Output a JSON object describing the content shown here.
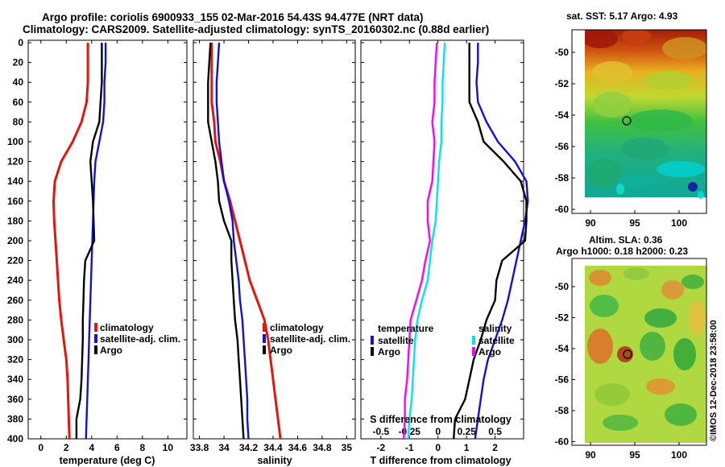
{
  "header": {
    "title_line1": "Argo profile: coriolis 6900933_155 02-Mar-2016 54.43S 94.477E (NRT data)",
    "title_line2": "Climatology: CARS2009. Satellite-adjusted climatology: synTS_20160302.nc (0.88d earlier)"
  },
  "colors": {
    "climatology": "#e8140c",
    "satellite": "#1010e0",
    "argo": "#000000",
    "satellite_s": "#00e5ee",
    "argo_s": "#ff00ff"
  },
  "chart_data": [
    {
      "type": "line",
      "id": "temperature",
      "xlabel": "temperature (deg C)",
      "xlim": [
        -1,
        11.5
      ],
      "ylim": [
        400,
        0
      ],
      "xticks": [
        0,
        2,
        4,
        6,
        8,
        10
      ],
      "xtick_labels": [
        "0",
        "2",
        "4",
        "6",
        "8",
        "10"
      ],
      "legend": [
        "climatology",
        "satellite-adj. clim.",
        "Argo"
      ],
      "depth": [
        0,
        20,
        40,
        60,
        80,
        100,
        120,
        140,
        160,
        180,
        200,
        220,
        240,
        260,
        280,
        300,
        320,
        340,
        360,
        380,
        400
      ],
      "series": [
        {
          "name": "climatology",
          "color_key": "climatology",
          "values": [
            3.7,
            3.7,
            3.7,
            3.6,
            3.2,
            2.5,
            1.6,
            1.1,
            1.0,
            1.05,
            1.15,
            1.25,
            1.35,
            1.45,
            1.6,
            1.8,
            2.0,
            2.1,
            2.15,
            2.2,
            2.25
          ]
        },
        {
          "name": "satellite-adj. clim.",
          "color_key": "satellite",
          "values": [
            5.1,
            5.1,
            5.0,
            5.0,
            4.9,
            4.6,
            4.3,
            4.2,
            4.15,
            4.1,
            4.05,
            4.0,
            3.95,
            3.9,
            3.85,
            3.8,
            3.75,
            3.7,
            3.65,
            3.6,
            3.55
          ]
        },
        {
          "name": "Argo",
          "color_key": "argo",
          "values": [
            4.8,
            4.8,
            4.8,
            4.7,
            4.6,
            4.1,
            3.9,
            4.0,
            4.1,
            4.15,
            4.2,
            3.5,
            3.4,
            3.35,
            3.3,
            3.3,
            3.25,
            3.2,
            3.1,
            2.8,
            2.8
          ]
        }
      ]
    },
    {
      "type": "line",
      "id": "salinity",
      "xlabel": "salinity",
      "xlim": [
        33.75,
        35.07
      ],
      "ylim": [
        400,
        0
      ],
      "xticks": [
        33.8,
        34.0,
        34.2,
        34.4,
        34.6,
        34.8,
        35.0
      ],
      "xtick_labels": [
        "33.8",
        "34",
        "34.2",
        "34.4",
        "34.6",
        "34.8",
        "35"
      ],
      "legend": [
        "climatology",
        "satellite-adj. clim.",
        "Argo"
      ],
      "depth": [
        0,
        20,
        40,
        60,
        80,
        100,
        120,
        140,
        160,
        180,
        200,
        220,
        240,
        260,
        280,
        300,
        320,
        340,
        360,
        380,
        400
      ],
      "series": [
        {
          "name": "climatology",
          "color_key": "climatology",
          "values": [
            33.9,
            33.9,
            33.9,
            33.9,
            33.92,
            33.93,
            33.97,
            34.0,
            34.05,
            34.09,
            34.13,
            34.17,
            34.21,
            34.27,
            34.33,
            34.36,
            34.38,
            34.4,
            34.42,
            34.44,
            34.46
          ]
        },
        {
          "name": "satellite-adj. clim.",
          "color_key": "satellite",
          "values": [
            33.96,
            33.95,
            33.94,
            33.94,
            33.95,
            33.96,
            33.98,
            34.0,
            34.04,
            34.07,
            34.08,
            34.1,
            34.12,
            34.13,
            34.15,
            34.16,
            34.17,
            34.18,
            34.19,
            34.19,
            34.2
          ]
        },
        {
          "name": "Argo",
          "color_key": "argo",
          "values": [
            33.89,
            33.88,
            33.87,
            33.87,
            33.87,
            33.9,
            33.93,
            33.95,
            33.96,
            34.0,
            34.06,
            34.06,
            34.07,
            34.08,
            34.09,
            34.11,
            34.12,
            34.13,
            34.14,
            34.15,
            34.16
          ]
        }
      ]
    },
    {
      "type": "line",
      "id": "difference",
      "xlabel": "T difference from climatology",
      "xlabel_top": "S difference from climatology",
      "xlim": [
        -2.7,
        3.0
      ],
      "xlim_top": [
        -0.675,
        0.75
      ],
      "ylim": [
        400,
        0
      ],
      "xticks": [
        -2,
        -1,
        0,
        1,
        2
      ],
      "xtick_labels": [
        "-2",
        "-1",
        "0",
        "1",
        "2"
      ],
      "xticks_top": [
        -0.5,
        -0.25,
        0,
        0.25,
        0.5
      ],
      "xtick_labels_top": [
        "-0.5",
        "-0.25",
        "0",
        "0.25",
        "0.5"
      ],
      "legend_t_title": "temperature",
      "legend_s_title": "salinity",
      "legend_t": [
        "satellite",
        "Argo"
      ],
      "legend_s": [
        "satellite",
        "Argo"
      ],
      "depth": [
        0,
        20,
        40,
        60,
        80,
        100,
        120,
        140,
        160,
        180,
        200,
        220,
        240,
        260,
        280,
        300,
        320,
        340,
        360,
        380,
        400
      ],
      "series": [
        {
          "name": "temperature satellite",
          "color_key": "satellite",
          "axis": "T",
          "values": [
            1.4,
            1.4,
            1.35,
            1.4,
            1.7,
            2.1,
            2.7,
            3.1,
            3.15,
            3.05,
            2.9,
            2.75,
            2.6,
            2.45,
            2.25,
            2.0,
            1.75,
            1.6,
            1.5,
            1.4,
            1.3
          ]
        },
        {
          "name": "temperature Argo",
          "color_key": "argo",
          "axis": "T",
          "values": [
            1.1,
            1.1,
            1.1,
            1.1,
            1.4,
            1.6,
            2.3,
            2.9,
            3.1,
            3.1,
            3.05,
            2.25,
            2.05,
            2.0,
            1.7,
            1.5,
            1.25,
            1.1,
            0.95,
            0.6,
            0.55
          ]
        },
        {
          "name": "salinity satellite",
          "color_key": "satellite_s",
          "axis": "S",
          "values": [
            0.06,
            0.05,
            0.04,
            0.04,
            0.03,
            0.03,
            0.01,
            0.0,
            -0.01,
            -0.02,
            -0.05,
            -0.07,
            -0.09,
            -0.14,
            -0.18,
            -0.2,
            -0.21,
            -0.22,
            -0.23,
            -0.25,
            -0.26
          ]
        },
        {
          "name": "salinity Argo",
          "color_key": "argo_s",
          "axis": "S",
          "values": [
            -0.01,
            -0.02,
            -0.03,
            -0.03,
            -0.05,
            -0.03,
            -0.04,
            -0.05,
            -0.09,
            -0.09,
            -0.07,
            -0.11,
            -0.14,
            -0.19,
            -0.24,
            -0.25,
            -0.26,
            -0.27,
            -0.29,
            -0.29,
            -0.3
          ]
        }
      ]
    },
    {
      "type": "heatmap",
      "id": "sst_map",
      "title": "sat. SST: 5.17 Argo: 4.93",
      "xticks": [
        90,
        95,
        100
      ],
      "yticks": [
        -50,
        -52,
        -54,
        -56,
        -58,
        -60
      ],
      "marker": [
        94.477,
        -54.43
      ]
    },
    {
      "type": "heatmap",
      "id": "sla_map",
      "title_line1": "Altim. SLA: 0.36",
      "title_line2": "Argo h1000: 0.18 h2000: 0.23",
      "xticks": [
        90,
        95,
        100
      ],
      "yticks": [
        -50,
        -52,
        -54,
        -56,
        -58,
        -60
      ],
      "marker": [
        94.477,
        -54.43
      ]
    }
  ],
  "depth_axis": {
    "ticks": [
      0,
      20,
      40,
      60,
      80,
      100,
      120,
      140,
      160,
      180,
      200,
      220,
      240,
      260,
      280,
      300,
      320,
      340,
      360,
      380,
      400
    ]
  },
  "footer": {
    "watermark": "©IMOS 12-Dec-2018 23:58:00"
  }
}
